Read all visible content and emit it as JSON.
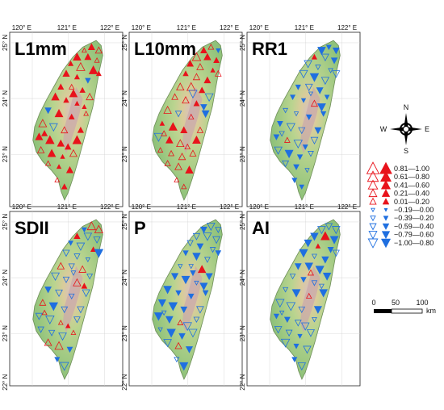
{
  "panels": [
    {
      "title": "L1mm",
      "trend": "up"
    },
    {
      "title": "L10mm",
      "trend": "up"
    },
    {
      "title": "RR1",
      "trend": "down"
    },
    {
      "title": "SDII",
      "trend": "mixed"
    },
    {
      "title": "P",
      "trend": "down"
    },
    {
      "title": "AI",
      "trend": "down"
    }
  ],
  "axes": {
    "lon_ticks": [
      "120° E",
      "121° E",
      "122° E"
    ],
    "lat_ticks": [
      "25° N",
      "24° N",
      "23° N",
      "22° N"
    ]
  },
  "compass": {
    "n": "N",
    "s": "S",
    "e": "E",
    "w": "W"
  },
  "legend": {
    "classes": [
      {
        "range": "0.81—1.00",
        "dir": "up"
      },
      {
        "range": "0.61—0.80",
        "dir": "up"
      },
      {
        "range": "0.41—0.60",
        "dir": "up"
      },
      {
        "range": "0.21—0.40",
        "dir": "up"
      },
      {
        "range": "0.01—0.20",
        "dir": "up"
      },
      {
        "range": "−0.19—0.00",
        "dir": "down"
      },
      {
        "range": "−0.39—0.20",
        "dir": "down"
      },
      {
        "range": "−0.59—0.40",
        "dir": "down"
      },
      {
        "range": "−0.79—0.60",
        "dir": "down"
      },
      {
        "range": "−1.00—0.80",
        "dir": "down"
      }
    ]
  },
  "scalebar": {
    "ticks": [
      "0",
      "50",
      "100"
    ],
    "unit": "km"
  },
  "colors": {
    "up": "#e8131b",
    "down": "#1f6fe0",
    "land": "#a9cf8f",
    "mountain": "#c4a4a4"
  }
}
